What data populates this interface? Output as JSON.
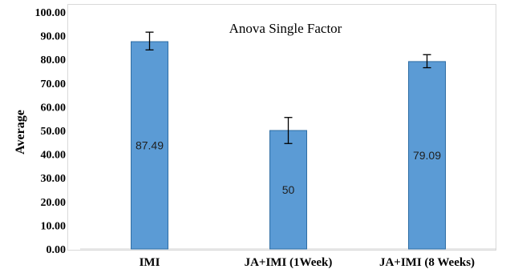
{
  "chart_data": {
    "type": "bar",
    "title": "Anova Single Factor",
    "xlabel": "",
    "ylabel": "Average",
    "categories": [
      "IMI",
      "JA+IMI (1Week)",
      "JA+IMI (8 Weeks)"
    ],
    "values": [
      87.49,
      50,
      79.09
    ],
    "data_labels": [
      "87.49",
      "50",
      "79.09"
    ],
    "error_bars": [
      {
        "low": 84.0,
        "high": 91.5
      },
      {
        "low": 44.5,
        "high": 55.5
      },
      {
        "low": 76.5,
        "high": 82.0
      }
    ],
    "ylim": [
      0,
      100
    ],
    "yticks": [
      "0.00",
      "10.00",
      "20.00",
      "30.00",
      "40.00",
      "50.00",
      "60.00",
      "70.00",
      "80.00",
      "90.00",
      "100.00"
    ],
    "grid": false,
    "bar_color": "#5b9bd5",
    "bar_edge_color": "#2e6da4"
  }
}
